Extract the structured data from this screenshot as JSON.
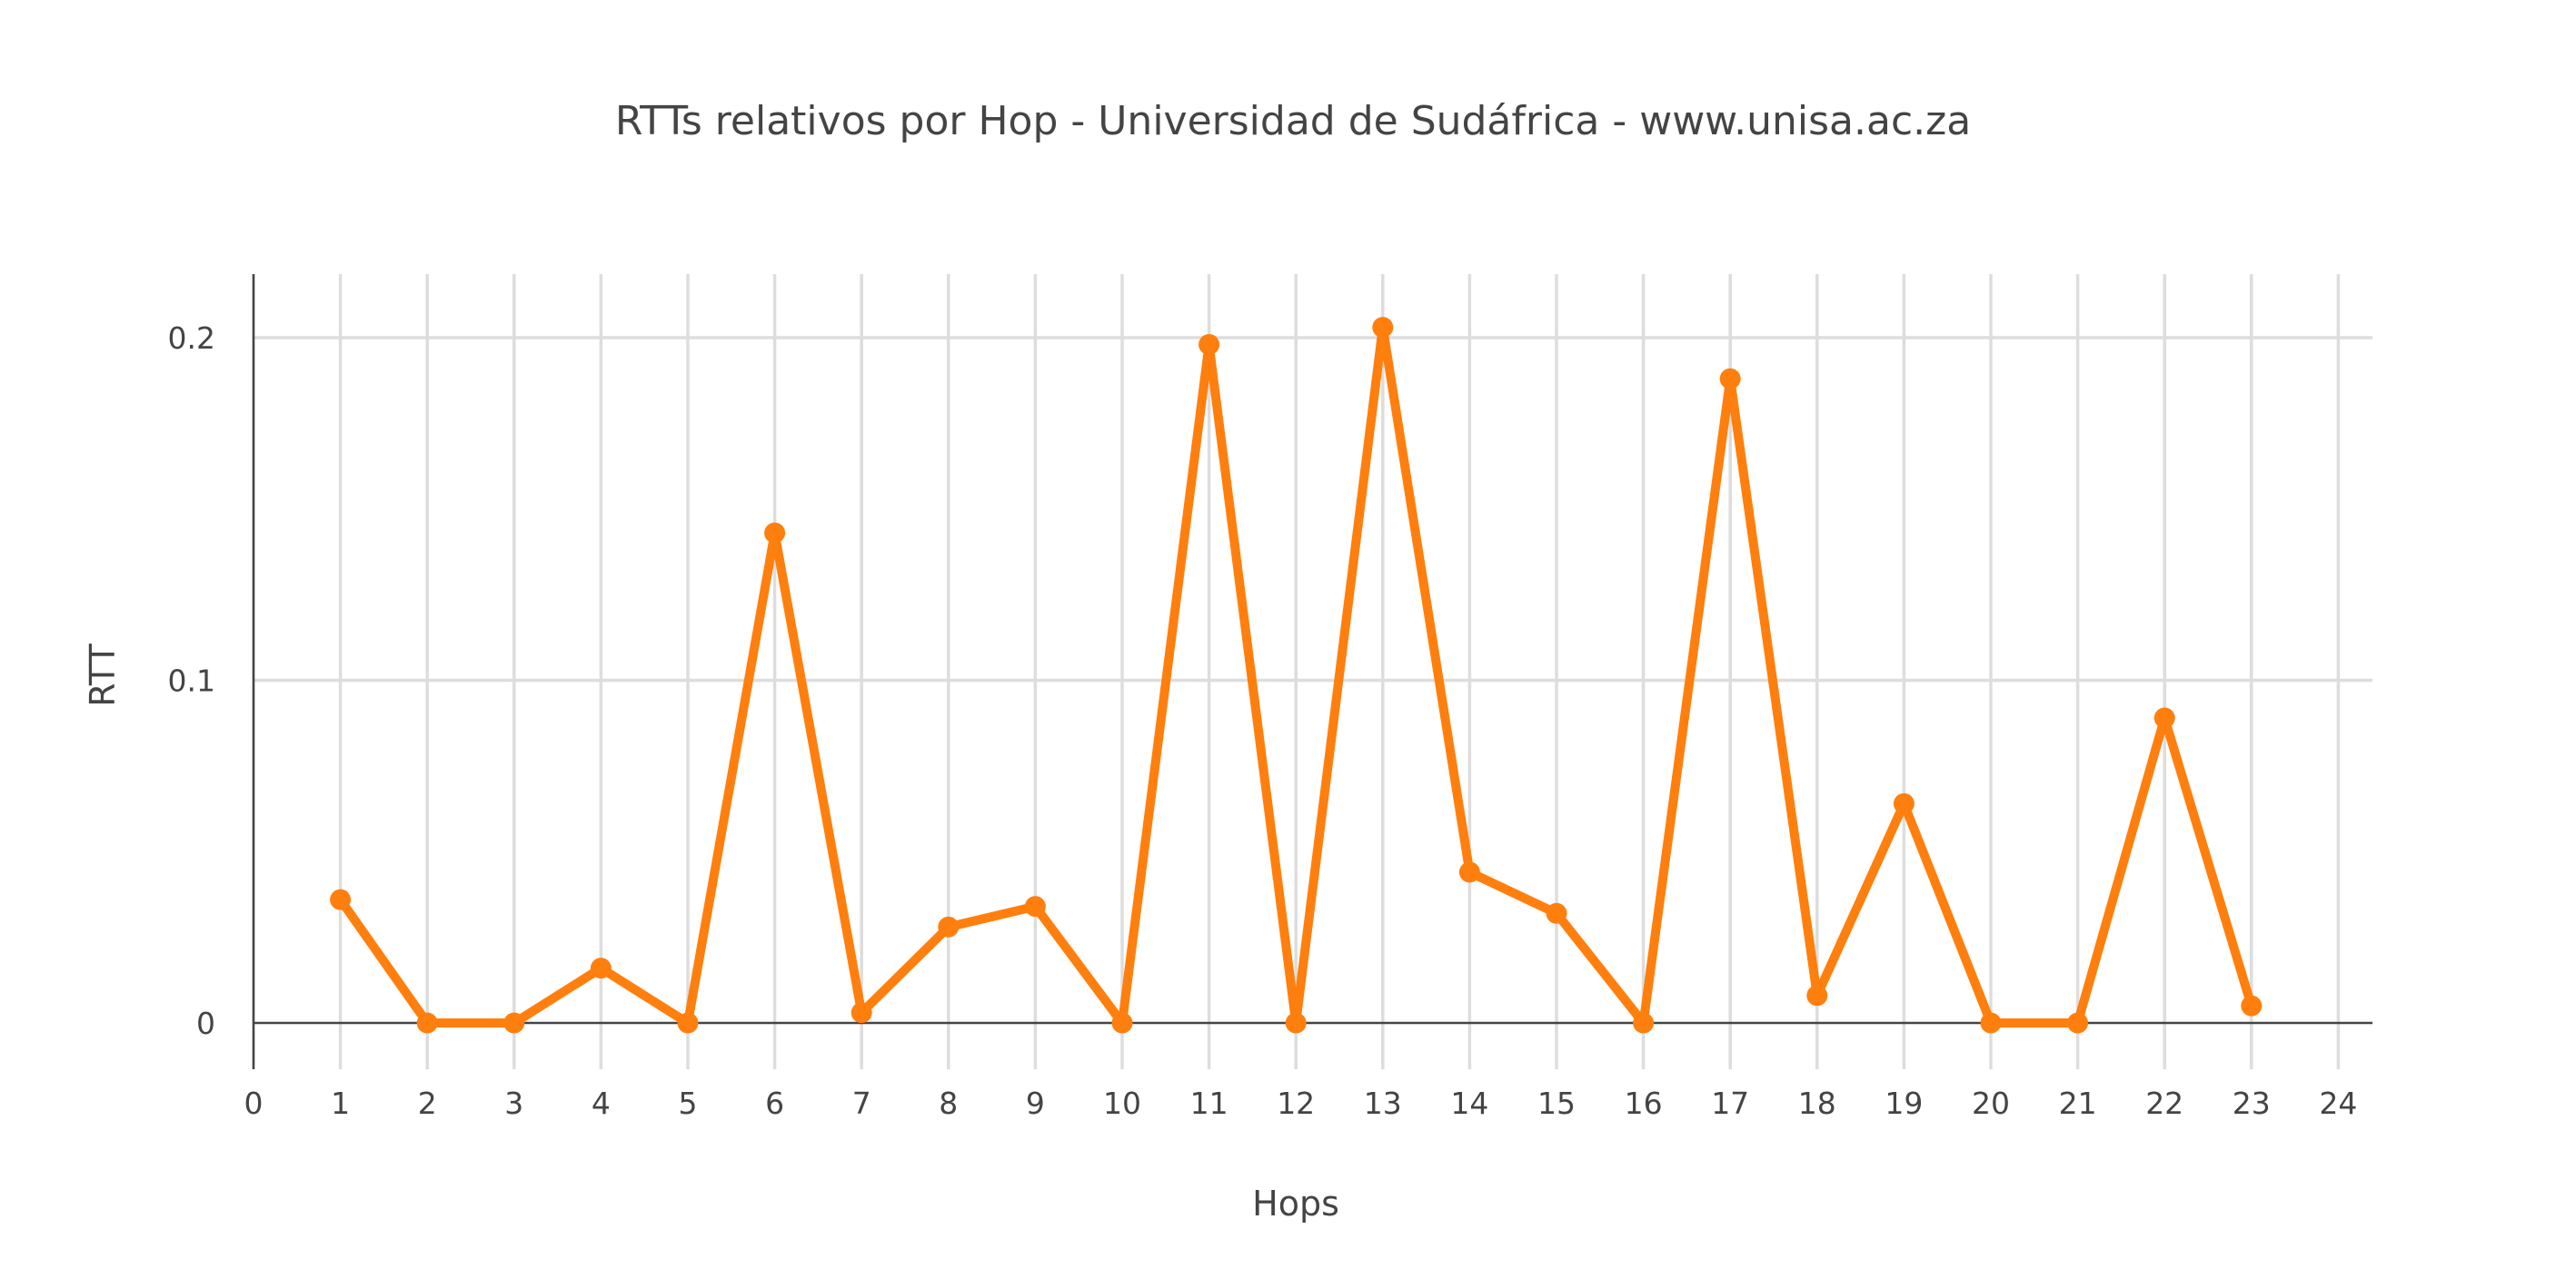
{
  "colors": {
    "series": "#ff7f0e",
    "grid": "#dddddd",
    "axis": "#444444",
    "text": "#444444",
    "background": "#ffffff"
  },
  "chart_data": {
    "type": "line",
    "title": "RTTs relativos por Hop - Universidad de Sudáfrica - www.unisa.ac.za",
    "xlabel": "Hops",
    "ylabel": "RTT",
    "xlim": [
      0,
      24
    ],
    "ylim": [
      -0.014,
      0.22
    ],
    "x_ticks": [
      0,
      1,
      2,
      3,
      4,
      5,
      6,
      7,
      8,
      9,
      10,
      11,
      12,
      13,
      14,
      15,
      16,
      17,
      18,
      19,
      20,
      21,
      22,
      23,
      24
    ],
    "y_ticks": [
      0,
      0.1,
      0.2
    ],
    "y_tick_labels": [
      "0",
      "0.1",
      "0.2"
    ],
    "grid": true,
    "legend": "none",
    "series": [
      {
        "mode": "lines+markers",
        "x": [
          1,
          2,
          3,
          4,
          5,
          6,
          7,
          8,
          9,
          10,
          11,
          12,
          13,
          14,
          15,
          16,
          17,
          18,
          19,
          20,
          21,
          22,
          23
        ],
        "y": [
          0.036,
          0.0,
          0.0,
          0.016,
          0.0,
          0.143,
          0.003,
          0.028,
          0.034,
          0.0,
          0.198,
          0.0,
          0.203,
          0.044,
          0.032,
          0.0,
          0.188,
          0.008,
          0.064,
          0.0,
          0.0,
          0.089,
          0.005
        ]
      }
    ]
  }
}
